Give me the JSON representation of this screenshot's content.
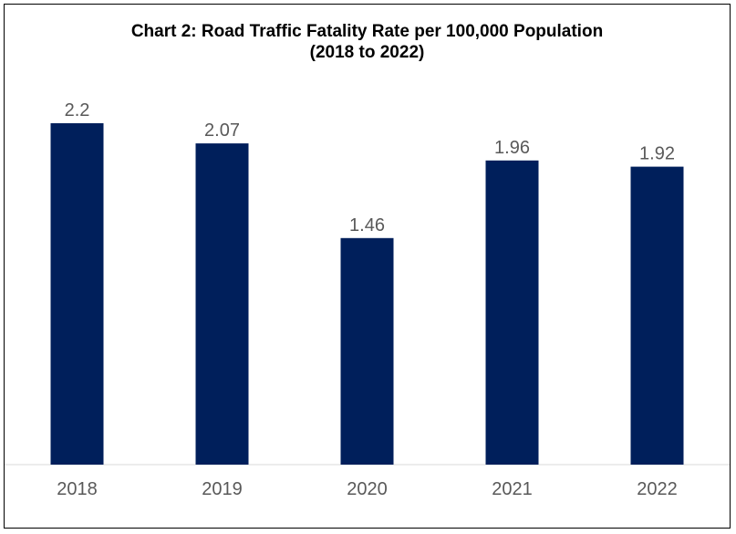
{
  "chart_data": {
    "type": "bar",
    "title_line1": "Chart 2: Road Traffic Fatality Rate per 100,000 Population",
    "title_line2": "(2018 to 2022)",
    "categories": [
      "2018",
      "2019",
      "2020",
      "2021",
      "2022"
    ],
    "values": [
      2.2,
      2.07,
      1.46,
      1.96,
      1.92
    ],
    "value_labels": [
      "2.2",
      "2.07",
      "1.46",
      "1.96",
      "1.92"
    ],
    "xlabel": "",
    "ylabel": "",
    "ylim": [
      0,
      2.2
    ],
    "grid": false,
    "legend": "none",
    "bar_color": "#001F5B"
  }
}
